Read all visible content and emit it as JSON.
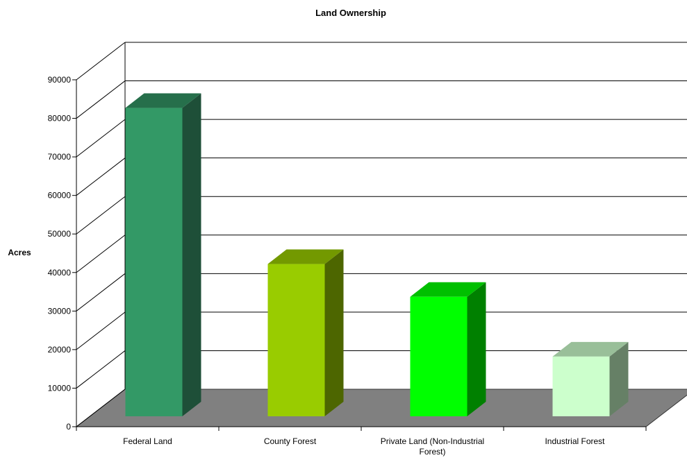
{
  "chart_data": {
    "type": "bar",
    "title": "Land Ownership",
    "ylabel": "Acres",
    "xlabel": "",
    "categories": [
      [
        "Federal Land"
      ],
      [
        "County Forest"
      ],
      [
        "Private Land (Non-Industrial",
        "Forest)"
      ],
      [
        "Industrial Forest"
      ]
    ],
    "values": [
      80000,
      39500,
      31000,
      15500
    ],
    "ylim": [
      0,
      90000
    ],
    "yticks": [
      0,
      10000,
      20000,
      30000,
      40000,
      50000,
      60000,
      70000,
      80000,
      90000
    ],
    "grid": true,
    "colors": {
      "front": [
        "#339966",
        "#99cc00",
        "#00ff00",
        "#ccffcc"
      ],
      "top": [
        "#266f4b",
        "#739900",
        "#00bf00",
        "#99bf99"
      ],
      "side": [
        "#1e4f38",
        "#4d6600",
        "#008000",
        "#668066"
      ],
      "floor": "#808080"
    }
  }
}
